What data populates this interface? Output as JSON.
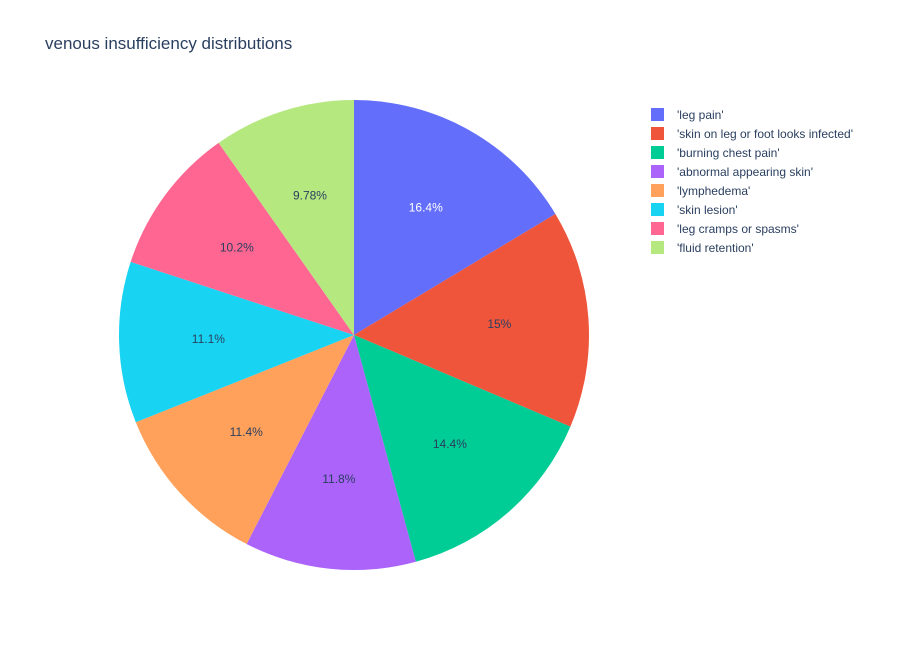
{
  "chart_data": {
    "type": "pie",
    "title": "venous insufficiency distributions",
    "legend_position": "right",
    "slices": [
      {
        "label": "'leg pain'",
        "percent_label": "16.4%",
        "value": 16.4,
        "color": "#636efa",
        "text_color": "#ffffff"
      },
      {
        "label": "'skin on leg or foot looks infected'",
        "percent_label": "15%",
        "value": 15.0,
        "color": "#ef553b",
        "text_color": "#2a3f5f"
      },
      {
        "label": "'burning chest pain'",
        "percent_label": "14.4%",
        "value": 14.4,
        "color": "#00cc96",
        "text_color": "#2a3f5f"
      },
      {
        "label": "'abnormal appearing skin'",
        "percent_label": "11.8%",
        "value": 11.8,
        "color": "#ab63fa",
        "text_color": "#2a3f5f"
      },
      {
        "label": "'lymphedema'",
        "percent_label": "11.4%",
        "value": 11.4,
        "color": "#ffa15a",
        "text_color": "#2a3f5f"
      },
      {
        "label": "'skin lesion'",
        "percent_label": "11.1%",
        "value": 11.1,
        "color": "#19d3f3",
        "text_color": "#2a3f5f"
      },
      {
        "label": "'leg cramps or spasms'",
        "percent_label": "10.2%",
        "value": 10.2,
        "color": "#ff6692",
        "text_color": "#2a3f5f"
      },
      {
        "label": "'fluid retention'",
        "percent_label": "9.78%",
        "value": 9.78,
        "color": "#b6e880",
        "text_color": "#2a3f5f"
      }
    ]
  }
}
